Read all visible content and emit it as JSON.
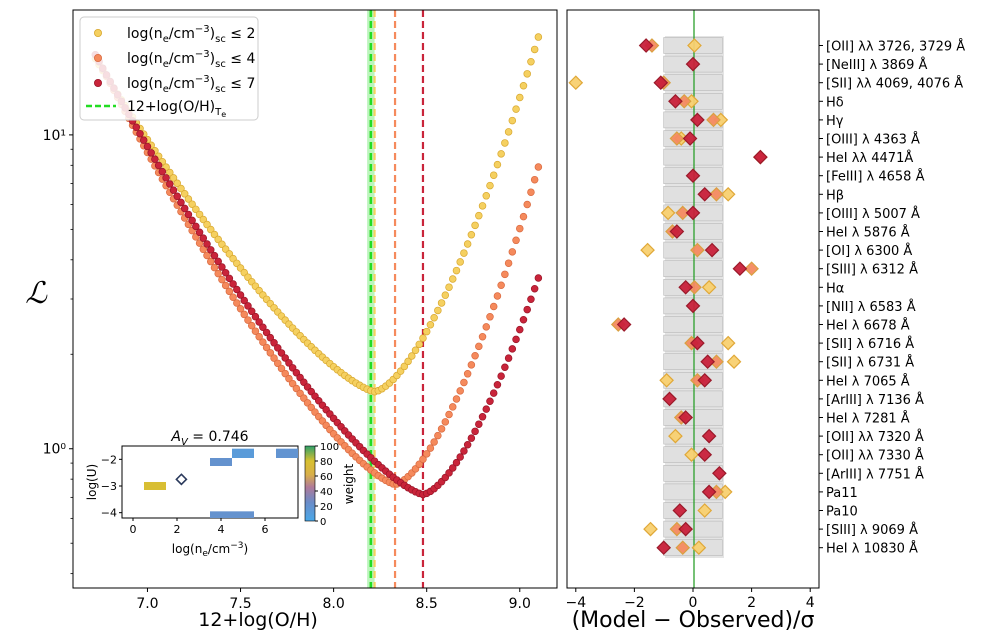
{
  "chart_data": [
    {
      "type": "scatter",
      "title": "",
      "xlabel": "12+log(O/H)",
      "ylabel": "ℒ",
      "xlim": [
        6.6,
        9.2
      ],
      "ylim": [
        0.36,
        25
      ],
      "yscale": "log",
      "xticks": [
        "7.0",
        "7.5",
        "8.0",
        "8.5",
        "9.0"
      ],
      "xtick_values": [
        7.0,
        7.5,
        8.0,
        8.5,
        9.0
      ],
      "yticks": [
        "10⁰",
        "10¹"
      ],
      "ytick_values": [
        1,
        10
      ],
      "legend": {
        "position": "top-left",
        "entries": [
          {
            "pre": "log(n",
            "sub1": "e",
            "mid": "/cm",
            "sup": "−3",
            "post": ")",
            "sub2": "sc",
            "cond": " ≤ 2"
          },
          {
            "pre": "log(n",
            "sub1": "e",
            "mid": "/cm",
            "sup": "−3",
            "post": ")",
            "sub2": "sc",
            "cond": " ≤ 4"
          },
          {
            "pre": "log(n",
            "sub1": "e",
            "mid": "/cm",
            "sup": "−3",
            "post": ")",
            "sub2": "sc",
            "cond": " ≤ 7"
          },
          {
            "pre": "12+log(O/H)",
            "sub1": "T",
            "subsub": "e"
          }
        ]
      },
      "series": [
        {
          "name": "log(ne/cm-3)sc <= 2",
          "color": "#f5d060",
          "edge": "#d8a830",
          "xmin": 6.72,
          "xmax": 9.1,
          "xbest": 8.22,
          "ybest": 1.52,
          "yleft": 17.5,
          "yright": 20.5,
          "vline": 8.22
        },
        {
          "name": "log(ne/cm-3)sc <= 4",
          "color": "#f58a5c",
          "edge": "#d96a40",
          "xmin": 6.72,
          "xmax": 9.1,
          "xbest": 8.33,
          "ybest": 0.77,
          "yleft": 18.0,
          "yright": 7.9,
          "vline": 8.33
        },
        {
          "name": "log(ne/cm-3)sc <= 7",
          "color": "#c9243a",
          "edge": "#9a1528",
          "xmin": 6.72,
          "xmax": 9.1,
          "xbest": 8.48,
          "ybest": 0.715,
          "yleft": 18.0,
          "yright": 3.5,
          "vline": 8.48
        }
      ],
      "te_line": {
        "x": 8.2,
        "band": [
          8.18,
          8.22
        ],
        "color": "#22dd22"
      },
      "inset": {
        "title_pre": "A",
        "title_sub": "V",
        "title_post": " = 0.746",
        "xlabel_pre": "log(n",
        "xlabel_sub": "e",
        "xlabel_mid": "/cm",
        "xlabel_sup": "−3",
        "xlabel_post": ")",
        "ylabel": "log(U)",
        "xticks": [
          "0",
          "2",
          "4",
          "6"
        ],
        "xtick_values": [
          0,
          2,
          4,
          6
        ],
        "yticks": [
          "−2",
          "−3",
          "−4"
        ],
        "ytick_values": [
          -2,
          -3,
          -4
        ],
        "xlim": [
          -0.5,
          7.5
        ],
        "ylim": [
          -4.2,
          -1.5
        ],
        "colorbar_label": "weight",
        "colorbar_ticks": [
          "0",
          "20",
          "40",
          "60",
          "80",
          "100"
        ],
        "colorbar_tick_values": [
          0,
          20,
          40,
          60,
          80,
          100
        ],
        "cells": [
          {
            "x0": 3.5,
            "x1": 4.5,
            "y0": -2.25,
            "y1": -1.95,
            "weight": 20
          },
          {
            "x0": 4.5,
            "x1": 5.5,
            "y0": -1.95,
            "y1": -1.6,
            "weight": 12
          },
          {
            "x0": 6.5,
            "x1": 7.5,
            "y0": -1.95,
            "y1": -1.6,
            "weight": 18
          },
          {
            "x0": 0.5,
            "x1": 1.5,
            "y0": -3.15,
            "y1": -2.85,
            "weight": 78
          },
          {
            "x0": 3.5,
            "x1": 5.5,
            "y0": -4.25,
            "y1": -3.95,
            "weight": 20
          }
        ],
        "best": {
          "x": 2.2,
          "y": -2.75
        }
      }
    },
    {
      "type": "scatter",
      "xlabel": "(Model − Observed)/σ",
      "xlim": [
        -4.3,
        4.3
      ],
      "xticks": [
        "−4",
        "−2",
        "0",
        "2",
        "4"
      ],
      "xtick_values": [
        -4,
        -2,
        0,
        2,
        4
      ],
      "band": [
        -1,
        1
      ],
      "lines": [
        {
          "label": "[OII] λλ 3726, 3729 Å",
          "v": [
            0.05,
            -1.4,
            -1.6
          ]
        },
        {
          "label": "[NeIII] λ 3869 Å",
          "v": [
            null,
            null,
            0.0
          ]
        },
        {
          "label": "[SII] λλ 4069, 4076 Å",
          "v": [
            -4.0,
            -1.0,
            -1.1
          ]
        },
        {
          "label": "Hδ",
          "v": [
            -0.05,
            -0.3,
            -0.6
          ]
        },
        {
          "label": "Hγ",
          "v": [
            0.95,
            0.7,
            0.15
          ]
        },
        {
          "label": "[OIII] λ 4363 Å",
          "v": [
            -0.4,
            -0.55,
            -0.1
          ]
        },
        {
          "label": "HeI λλ 4471Å",
          "v": [
            null,
            2.3,
            2.3
          ]
        },
        {
          "label": "[FeIII] λ 4658 Å",
          "v": [
            null,
            null,
            0.0
          ]
        },
        {
          "label": "Hβ",
          "v": [
            1.2,
            0.8,
            0.4
          ]
        },
        {
          "label": "[OIII] λ 5007 Å",
          "v": [
            -0.85,
            -0.35,
            0.0
          ]
        },
        {
          "label": "HeI λ 5876 Å",
          "v": [
            null,
            -0.7,
            -0.55
          ]
        },
        {
          "label": "[OI] λ 6300 Å",
          "v": [
            -1.55,
            0.15,
            0.65
          ]
        },
        {
          "label": "[SIII] λ 6312 Å",
          "v": [
            null,
            2.0,
            1.6
          ]
        },
        {
          "label": "Hα",
          "v": [
            0.55,
            0.05,
            -0.25
          ]
        },
        {
          "label": "[NII] λ 6583 Å",
          "v": [
            null,
            null,
            0.0
          ]
        },
        {
          "label": "HeI λ 6678 Å",
          "v": [
            null,
            -2.55,
            -2.35
          ]
        },
        {
          "label": "[SII] λ 6716 Å",
          "v": [
            1.2,
            -0.05,
            0.15
          ]
        },
        {
          "label": "[SII] λ 6731 Å",
          "v": [
            1.4,
            0.8,
            0.5
          ]
        },
        {
          "label": "HeI λ 7065 Å",
          "v": [
            -0.9,
            0.15,
            0.4
          ]
        },
        {
          "label": "[ArIII] λ 7136 Å",
          "v": [
            null,
            null,
            -0.8
          ]
        },
        {
          "label": "HeI λ 7281 Å",
          "v": [
            null,
            -0.4,
            -0.25
          ]
        },
        {
          "label": "[OII] λλ 7320 Å",
          "v": [
            -0.6,
            null,
            0.55
          ]
        },
        {
          "label": "[OII] λλ 7330 Å",
          "v": [
            -0.05,
            null,
            0.4
          ]
        },
        {
          "label": "[ArIII] λ 7751 Å",
          "v": [
            null,
            null,
            0.9
          ]
        },
        {
          "label": "Pa11",
          "v": [
            1.1,
            0.8,
            0.55
          ]
        },
        {
          "label": "Pa10",
          "v": [
            0.4,
            null,
            -0.45
          ]
        },
        {
          "label": "[SIII] λ 9069 Å",
          "v": [
            -1.45,
            -0.55,
            -0.25
          ]
        },
        {
          "label": "HeI λ 10830 Å",
          "v": [
            0.2,
            -0.35,
            -1.0
          ]
        }
      ]
    }
  ]
}
